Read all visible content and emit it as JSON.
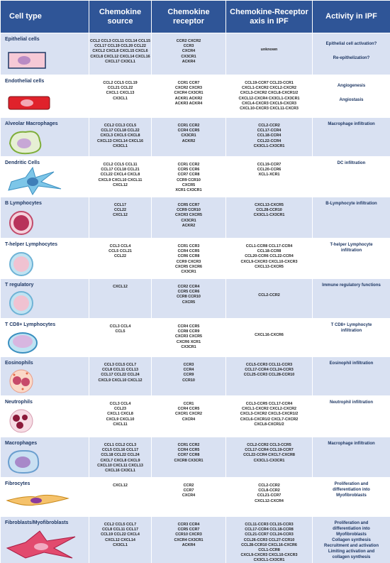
{
  "header": [
    "Cell type",
    "Chemokine source",
    "Chemokine receptor",
    "Chemokine-Receptor axis in IPF",
    "Activity in IPF"
  ],
  "rows": [
    {
      "cell_type": "Epithelial cells",
      "source": [
        "CCL2 CCL3 CCL11 CCL14 CCL15",
        "CCL17 CCL19 CCL20 CCL22",
        "CXCL2 CXCL8 CXCL15 CXCL6",
        "CXCL8 CXCL12 CXCL14 CXCL16",
        "CXCL17 CX3CL1"
      ],
      "receptor": [
        "CCR2 CXCR2",
        "CCR3",
        "CXCR4",
        "CX3CR1",
        "ACKR4"
      ],
      "axis": [
        "unknown"
      ],
      "activity": [
        "Epithelial cell activation?",
        "Re-epithelization?"
      ]
    },
    {
      "cell_type": "Endothelial cells",
      "source": [
        "CCL2 CCL5 CCL19",
        "CCL21 CCL22",
        "CXCL1 CXCL13",
        "CX3CL1"
      ],
      "receptor": [
        "CCR1 CCR7",
        "CXCR2 CXCR3",
        "CXCR4 CX3CR1",
        "ACKR1 ACKR2",
        "ACKR3 ACKR4"
      ],
      "axis": [
        "CCL19-CCR7 CCL23-CCR1",
        "CXCL1-CXCR2 CXCL2-CXCR2",
        "CXCL3-CXCR2 CXCL8-CXCR1/2",
        "CXCL12-CXCR4 CX3CL1-CX3CR1",
        "CXCL4-CXCR3 CXCL9-CXCR3",
        "CXCL10-CXCR3 CXCL11-CXCR3"
      ],
      "activity": [
        "Angiogenesis",
        "Angiostasis"
      ]
    },
    {
      "cell_type": "Alveolar Macrophages",
      "source": [
        "CCL2 CCL3 CCL5",
        "CCL17 CCL18 CCL22",
        "CXCL3 CXCL5 CXCL8",
        "CXCL13 CXCL14 CXCL16",
        "CX3CL1"
      ],
      "receptor": [
        "CCR1 CCR2",
        "CCR4 CCR5",
        "CX3CR1",
        "ACKR2"
      ],
      "axis": [
        "CCL2-CCR2",
        "CCL17-CCR4",
        "CCL18-CCR4",
        "CCL22-CCR4",
        "CX3CL1-CX3CR1"
      ],
      "activity": [
        "Macrophage infiltration"
      ]
    },
    {
      "cell_type": "Dendritic Cells",
      "source": [
        "CCL2 CCL5 CCL11",
        "CCL17 CCL18 CCL21",
        "CCL22 CXCL4 CXCL8",
        "CXCL9 CXCL10 CXCL11",
        "CXCL12"
      ],
      "receptor": [
        "CCR1 CCR2",
        "CCR5 CCR6",
        "CCR7 CCR8",
        "CCR9 CCR10",
        "CXCR5",
        "XCR1 CX3CR1"
      ],
      "axis": [
        "CCL19-CCR7",
        "CCL20-CCR6",
        "XCL1-XCR1"
      ],
      "activity": [
        "DC infiltration"
      ]
    },
    {
      "cell_type": "B Lymphocytes",
      "source": [
        "CCL17",
        "CCL22",
        "CXCL12"
      ],
      "receptor": [
        "CCR5 CCR7",
        "CCR9 CCR10",
        "CXCR3 CXCR5",
        "CX3CR1",
        "ACKR2"
      ],
      "axis": [
        "CXCL13-CXCR5",
        "CCL28-CCR10",
        "CX3CL1-CX3CR1"
      ],
      "activity": [
        "B-Lymphocyte infiltration"
      ]
    },
    {
      "cell_type": "T-helper Lymphocytes",
      "source": [
        "CCL3 CCL4",
        "CCL5 CCL21",
        "CCL22"
      ],
      "receptor": [
        "CCR1 CCR3",
        "CCR4 CCR5",
        "CCR6 CCR8",
        "CCR9 CXCR3",
        "CXCR5 CXCR6",
        "CX3CR1"
      ],
      "axis": [
        "CCL1-CCR8 CCL17-CCR4",
        "CCL18-CCR8",
        "CCL20-CCR6 CCL22-CCR4",
        "CXCL9-CXCR3 CXCL10-CXCR3",
        "CXCL13-CXCR5"
      ],
      "activity": [
        "T-helper Lymphocyte",
        "infiltration"
      ]
    },
    {
      "cell_type": "T regulatory",
      "source": [
        "CXCL12"
      ],
      "receptor": [
        "CCR2 CCR4",
        "CCR5 CCR6",
        "CCR8 CCR10",
        "CXCR5"
      ],
      "axis": [
        "CCL2-CCR2"
      ],
      "activity": [
        "Immune regulatory functions"
      ]
    },
    {
      "cell_type": "T CD8+ Lymphocytes",
      "source": [
        "CCL3 CCL4",
        "CCL5"
      ],
      "receptor": [
        "CCR4 CCR5",
        "CCR8 CCR9",
        "CXCR3 CXCR5",
        "CXCR6 XCR1",
        "CX3CR1"
      ],
      "axis": [
        "CXCL16-CXCR6"
      ],
      "activity": [
        "T CD8+ Lymphocyte",
        "infiltration"
      ]
    },
    {
      "cell_type": "Eosinophils",
      "source": [
        "CCL3 CCL5 CCL7",
        "CCL8 CCL11 CCL13",
        "CCL17 CCL22 CCL24",
        "CXCL9 CXCL10 CXCL12"
      ],
      "receptor": [
        "CCR3",
        "CCR4",
        "CCR9",
        "CCR10"
      ],
      "axis": [
        "CCL5-CCR3 CCL11-CCR3",
        "CCL17-CCR4 CCL24-CCR3",
        "CCL25-CCR3 CCL28-CCR10"
      ],
      "activity": [
        "Eosinophil infiltration"
      ]
    },
    {
      "cell_type": "Neutrophils",
      "source": [
        "CCL3 CCL4",
        "CCL23",
        "CXCL1 CXCL8",
        "CXCL9 CXCL10",
        "CXCL11"
      ],
      "receptor": [
        "CCR1",
        "CCR4 CCR5",
        "CXCR1 CXCR2",
        "CXCR4"
      ],
      "axis": [
        "CCL3-CCR5 CCL17-CCR4",
        "CXCL1-CXCR2 CXCL2-CXCR2",
        "CXCL3-CXCR2 CXCL5-CXCR1/2",
        "CXCL6-CXCR1/2 CXCL7-CXCR2",
        "CXCL8-CXCR1/2"
      ],
      "activity": [
        "Neutrophil infiltration"
      ]
    },
    {
      "cell_type": "Macrophages",
      "source": [
        "CCL1 CCL2 CCL3",
        "CCL5 CCL16 CCL17",
        "CCL18 CCL22 CCL24",
        "CXCL7 CXCL8 CXCL9",
        "CXCL10 CXCL11 CXCL13",
        "CXCL16 CX3CL1"
      ],
      "receptor": [
        "CCR1 CCR2",
        "CCR4 CCR5",
        "CCR7 CCR8",
        "CXCR8 CX3CR1"
      ],
      "axis": [
        "CCL2-CCR2 CCL3-CCR5",
        "CCL17-CCR4 CCL19-CCR7",
        "CCL22-CCR4 CXCL7-CXCR8",
        "CX3CL1-CX3CR1"
      ],
      "activity": [
        "Macrophage infiltration"
      ]
    },
    {
      "cell_type": "Fibrocytes",
      "source": [
        "CXCL12"
      ],
      "receptor": [
        "CCR2",
        "CCR7",
        "CXCR4"
      ],
      "axis": [
        "CCL2-CCR2",
        "CCL8-CCR2",
        "CCL21-CCR7",
        "CXCL12-CXCR4"
      ],
      "activity": [
        "Proliferation and",
        "differentiation into",
        "Myofibroblasts"
      ]
    },
    {
      "cell_type": "Fibroblasts/Myofibroblasts",
      "source": [
        "CCL2 CCL5 CCL7",
        "CCL8 CCL11 CCL17",
        "CCL19 CCL22 CXCL4",
        "CXCL12 CXCL14",
        "CX3CL1"
      ],
      "receptor": [
        "CCR3 CCR4",
        "CCR5 CCR7",
        "CCR10 CXCR3",
        "CXCR4 CX3CR1",
        "ACKR4"
      ],
      "axis": [
        "CCL11-CCR3 CCL15-CCR3",
        "CCL17-CCR4 CCL18-CCR8",
        "CCL21-CCR7 CCL24-CCR3",
        "CCL26-CCR3 CCL27-CCR10",
        "CCL28-CCR10 CXCL16-CXCR6",
        "CCL1-CCR8",
        "CXCL9-CXCR3 CXCL10-CXCR3",
        "CX3CL1-CX3CR1"
      ],
      "activity": [
        "Proliferation and",
        "differentiation into",
        "Myofibroblasts",
        "Collagen synthesis",
        "Recruitment and activation",
        "Limiting activation and",
        "collagen synthesis"
      ]
    }
  ]
}
